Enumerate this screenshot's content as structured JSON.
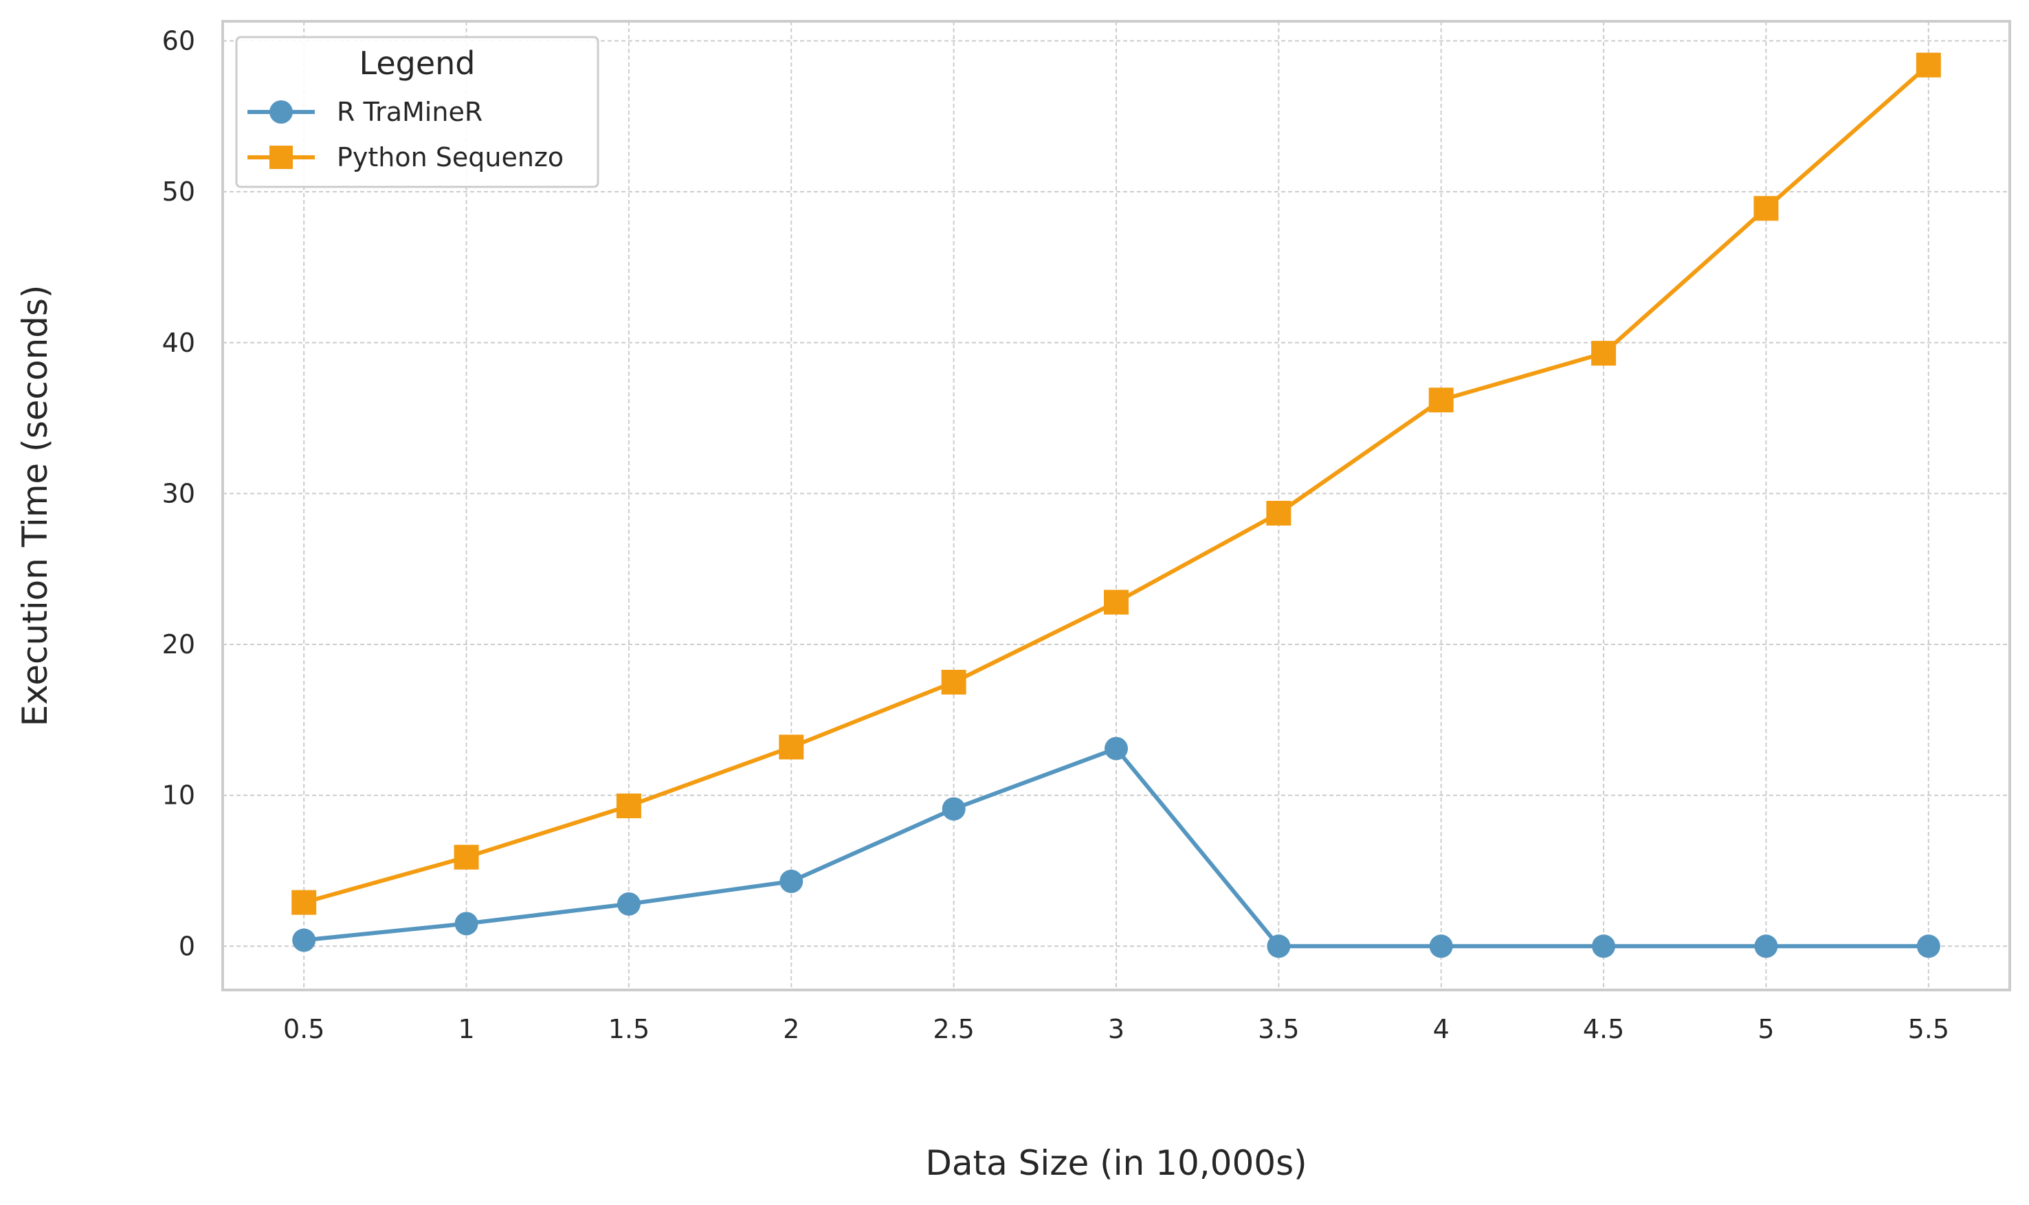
{
  "chart_data": {
    "type": "line",
    "xlabel": "Data Size (in 10,000s)",
    "ylabel": "Execution Time (seconds)",
    "x": [
      0.5,
      1,
      1.5,
      2,
      2.5,
      3,
      3.5,
      4,
      4.5,
      5,
      5.5
    ],
    "x_tick_labels": [
      "0.5",
      "1",
      "1.5",
      "2",
      "2.5",
      "3",
      "3.5",
      "4",
      "4.5",
      "5",
      "5.5"
    ],
    "y_ticks": [
      0,
      10,
      20,
      30,
      40,
      50,
      60
    ],
    "y_tick_labels": [
      "0",
      "10",
      "20",
      "30",
      "40",
      "50",
      "60"
    ],
    "xlim": [
      0.25,
      5.75
    ],
    "ylim": [
      -2.9,
      61.3
    ],
    "grid": true,
    "grid_style": "dashed",
    "legend": {
      "title": "Legend",
      "placement": "top-left"
    },
    "series": [
      {
        "name": "R TraMineR",
        "color": "#5596c0",
        "marker": "circle",
        "values": [
          0.4,
          1.5,
          2.8,
          4.3,
          9.1,
          13.1,
          0,
          0,
          0,
          0,
          0
        ]
      },
      {
        "name": "Python Sequenzo",
        "color": "#f39c12",
        "marker": "square",
        "values": [
          2.9,
          5.9,
          9.3,
          13.2,
          17.5,
          22.8,
          28.7,
          36.2,
          39.3,
          48.9,
          58.4
        ]
      }
    ]
  }
}
